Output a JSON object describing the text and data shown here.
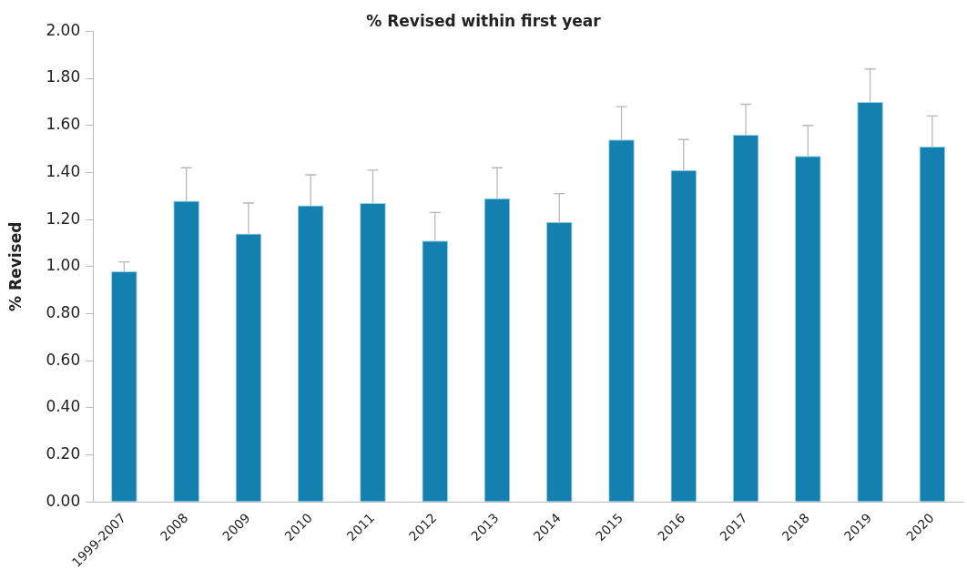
{
  "chart_data": {
    "type": "bar",
    "title": "% Revised within first year",
    "ylabel": "% Revised",
    "categories": [
      "1999-2007",
      "2008",
      "2009",
      "2010",
      "2011",
      "2012",
      "2013",
      "2014",
      "2015",
      "2016",
      "2017",
      "2018",
      "2019",
      "2020"
    ],
    "values": [
      0.98,
      1.28,
      1.14,
      1.26,
      1.27,
      1.11,
      1.29,
      1.19,
      1.54,
      1.41,
      1.56,
      1.47,
      1.7,
      1.51
    ],
    "errors": [
      [
        0.98,
        1.02
      ],
      [
        1.28,
        1.42
      ],
      [
        1.14,
        1.27
      ],
      [
        1.26,
        1.39
      ],
      [
        1.27,
        1.41
      ],
      [
        1.11,
        1.23
      ],
      [
        1.29,
        1.42
      ],
      [
        1.19,
        1.31
      ],
      [
        1.54,
        1.68
      ],
      [
        1.41,
        1.54
      ],
      [
        1.56,
        1.69
      ],
      [
        1.47,
        1.6
      ],
      [
        1.7,
        1.84
      ],
      [
        1.51,
        1.64
      ]
    ],
    "color": "#1380b0",
    "ylim": [
      0,
      2
    ],
    "yticks": [
      {
        "value": 0,
        "label": "0.00"
      },
      {
        "value": 0.2,
        "label": "0.20"
      },
      {
        "value": 0.4,
        "label": "0.40"
      },
      {
        "value": 0.6,
        "label": "0.60"
      },
      {
        "value": 0.8,
        "label": "0.80"
      },
      {
        "value": 1,
        "label": "1.00"
      },
      {
        "value": 1.2,
        "label": "1.20"
      },
      {
        "value": 1.4,
        "label": "1.40"
      },
      {
        "value": 1.6,
        "label": "1.60"
      },
      {
        "value": 1.8,
        "label": "1.80"
      },
      {
        "value": 2,
        "label": "2.00"
      }
    ],
    "grid": false,
    "legend": false
  }
}
